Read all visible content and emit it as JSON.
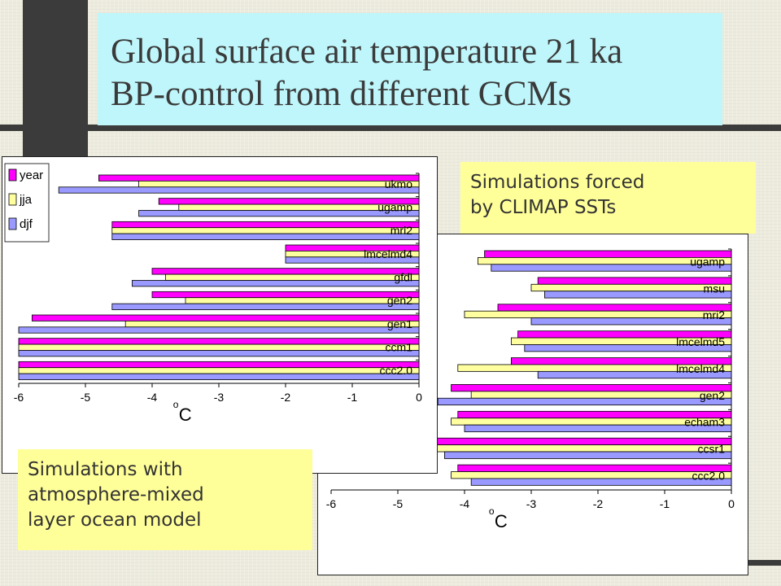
{
  "title": {
    "line1": "Global surface air temperature 21 ka",
    "line2": "BP-control from different GCMs"
  },
  "notes": {
    "top": [
      "Simulations forced",
      "by CLIMAP SSTs"
    ],
    "bottom": [
      "Simulations with",
      "atmosphere-mixed",
      "layer ocean model"
    ]
  },
  "colors": {
    "year": "#ff00ff",
    "jja": "#ffffa0",
    "djf": "#9999ff",
    "title_bg": "#bff6fb",
    "note_bg": "#ffff99"
  },
  "chart_data": [
    {
      "type": "bar",
      "orientation": "horizontal",
      "xlabel": "oC",
      "xlim": [
        -6,
        0
      ],
      "xticks": [
        -6,
        -5,
        -4,
        -3,
        -2,
        -1,
        0
      ],
      "legend": "top-left",
      "categories": [
        "ukmo",
        "ugamp",
        "mri2",
        "lmcelmd4",
        "gfdl",
        "gen2",
        "gen1",
        "ccm1",
        "ccc2.0"
      ],
      "series": [
        {
          "name": "year",
          "values": [
            -4.8,
            -3.9,
            -4.6,
            -2.0,
            -4.0,
            -4.0,
            -5.8,
            -6.0,
            -6.0
          ]
        },
        {
          "name": "jja",
          "values": [
            -4.2,
            -3.6,
            -4.6,
            -2.0,
            -3.8,
            -3.5,
            -4.4,
            -6.0,
            -6.0
          ]
        },
        {
          "name": "djf",
          "values": [
            -5.4,
            -4.2,
            -4.6,
            -2.0,
            -4.3,
            -4.6,
            -6.0,
            -6.0,
            -6.0
          ]
        }
      ]
    },
    {
      "type": "bar",
      "orientation": "horizontal",
      "xlabel": "oC",
      "xlim": [
        -6,
        0
      ],
      "xticks": [
        -6,
        -5,
        -4,
        -3,
        -2,
        -1,
        0
      ],
      "categories": [
        "ugamp",
        "msu",
        "mri2",
        "lmcelmd5",
        "lmcelmd4",
        "gen2",
        "echam3",
        "ccsr1",
        "ccc2.0"
      ],
      "series": [
        {
          "name": "year",
          "values": [
            -3.7,
            -2.9,
            -3.5,
            -3.2,
            -3.3,
            -4.2,
            -4.1,
            -4.5,
            -4.1
          ]
        },
        {
          "name": "jja",
          "values": [
            -3.8,
            -3.0,
            -4.0,
            -3.3,
            -4.1,
            -3.9,
            -4.2,
            -4.5,
            -4.2
          ]
        },
        {
          "name": "djf",
          "values": [
            -3.6,
            -2.8,
            -3.0,
            -3.1,
            -2.9,
            -4.4,
            -4.0,
            -4.3,
            -3.9
          ]
        }
      ]
    }
  ]
}
